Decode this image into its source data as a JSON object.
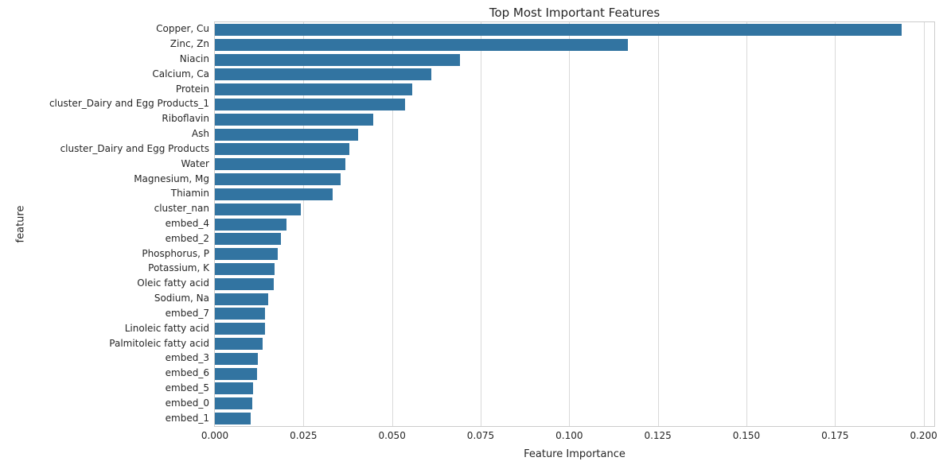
{
  "title": "Top Most Important Features",
  "chart_data": {
    "type": "bar",
    "orientation": "horizontal",
    "title": "Top Most Important Features",
    "xlabel": "Feature Importance",
    "ylabel": "feature",
    "categories": [
      "Copper, Cu",
      "Zinc, Zn",
      "Niacin",
      "Calcium, Ca",
      "Protein",
      "cluster_Dairy and Egg Products_1",
      "Riboflavin",
      "Ash",
      "cluster_Dairy and Egg Products",
      "Water",
      "Magnesium, Mg",
      "Thiamin",
      "cluster_nan",
      "embed_4",
      "embed_2",
      "Phosphorus, P",
      "Potassium, K",
      "Oleic fatty acid",
      "Sodium, Na",
      "embed_7",
      "Linoleic fatty acid",
      "Palmitoleic fatty acid",
      "embed_3",
      "embed_6",
      "embed_5",
      "embed_0",
      "embed_1"
    ],
    "values": [
      0.1939,
      0.1166,
      0.0692,
      0.061,
      0.0557,
      0.0537,
      0.0447,
      0.0404,
      0.038,
      0.0368,
      0.0355,
      0.0332,
      0.0243,
      0.0201,
      0.0187,
      0.0177,
      0.0168,
      0.0167,
      0.0151,
      0.0142,
      0.0141,
      0.0135,
      0.0122,
      0.0118,
      0.0107,
      0.0106,
      0.01
    ],
    "xlim": [
      0,
      0.203
    ],
    "xticks": [
      0.0,
      0.025,
      0.05,
      0.075,
      0.1,
      0.125,
      0.15,
      0.175,
      0.2
    ],
    "xtick_labels": [
      "0.000",
      "0.025",
      "0.050",
      "0.075",
      "0.100",
      "0.125",
      "0.150",
      "0.175",
      "0.200"
    ],
    "grid": "vertical",
    "legend": "none",
    "bar_color": "#3274a1",
    "grid_color": "#d9d9d9",
    "spine_color": "#cccccc",
    "text_color": "#262626"
  }
}
